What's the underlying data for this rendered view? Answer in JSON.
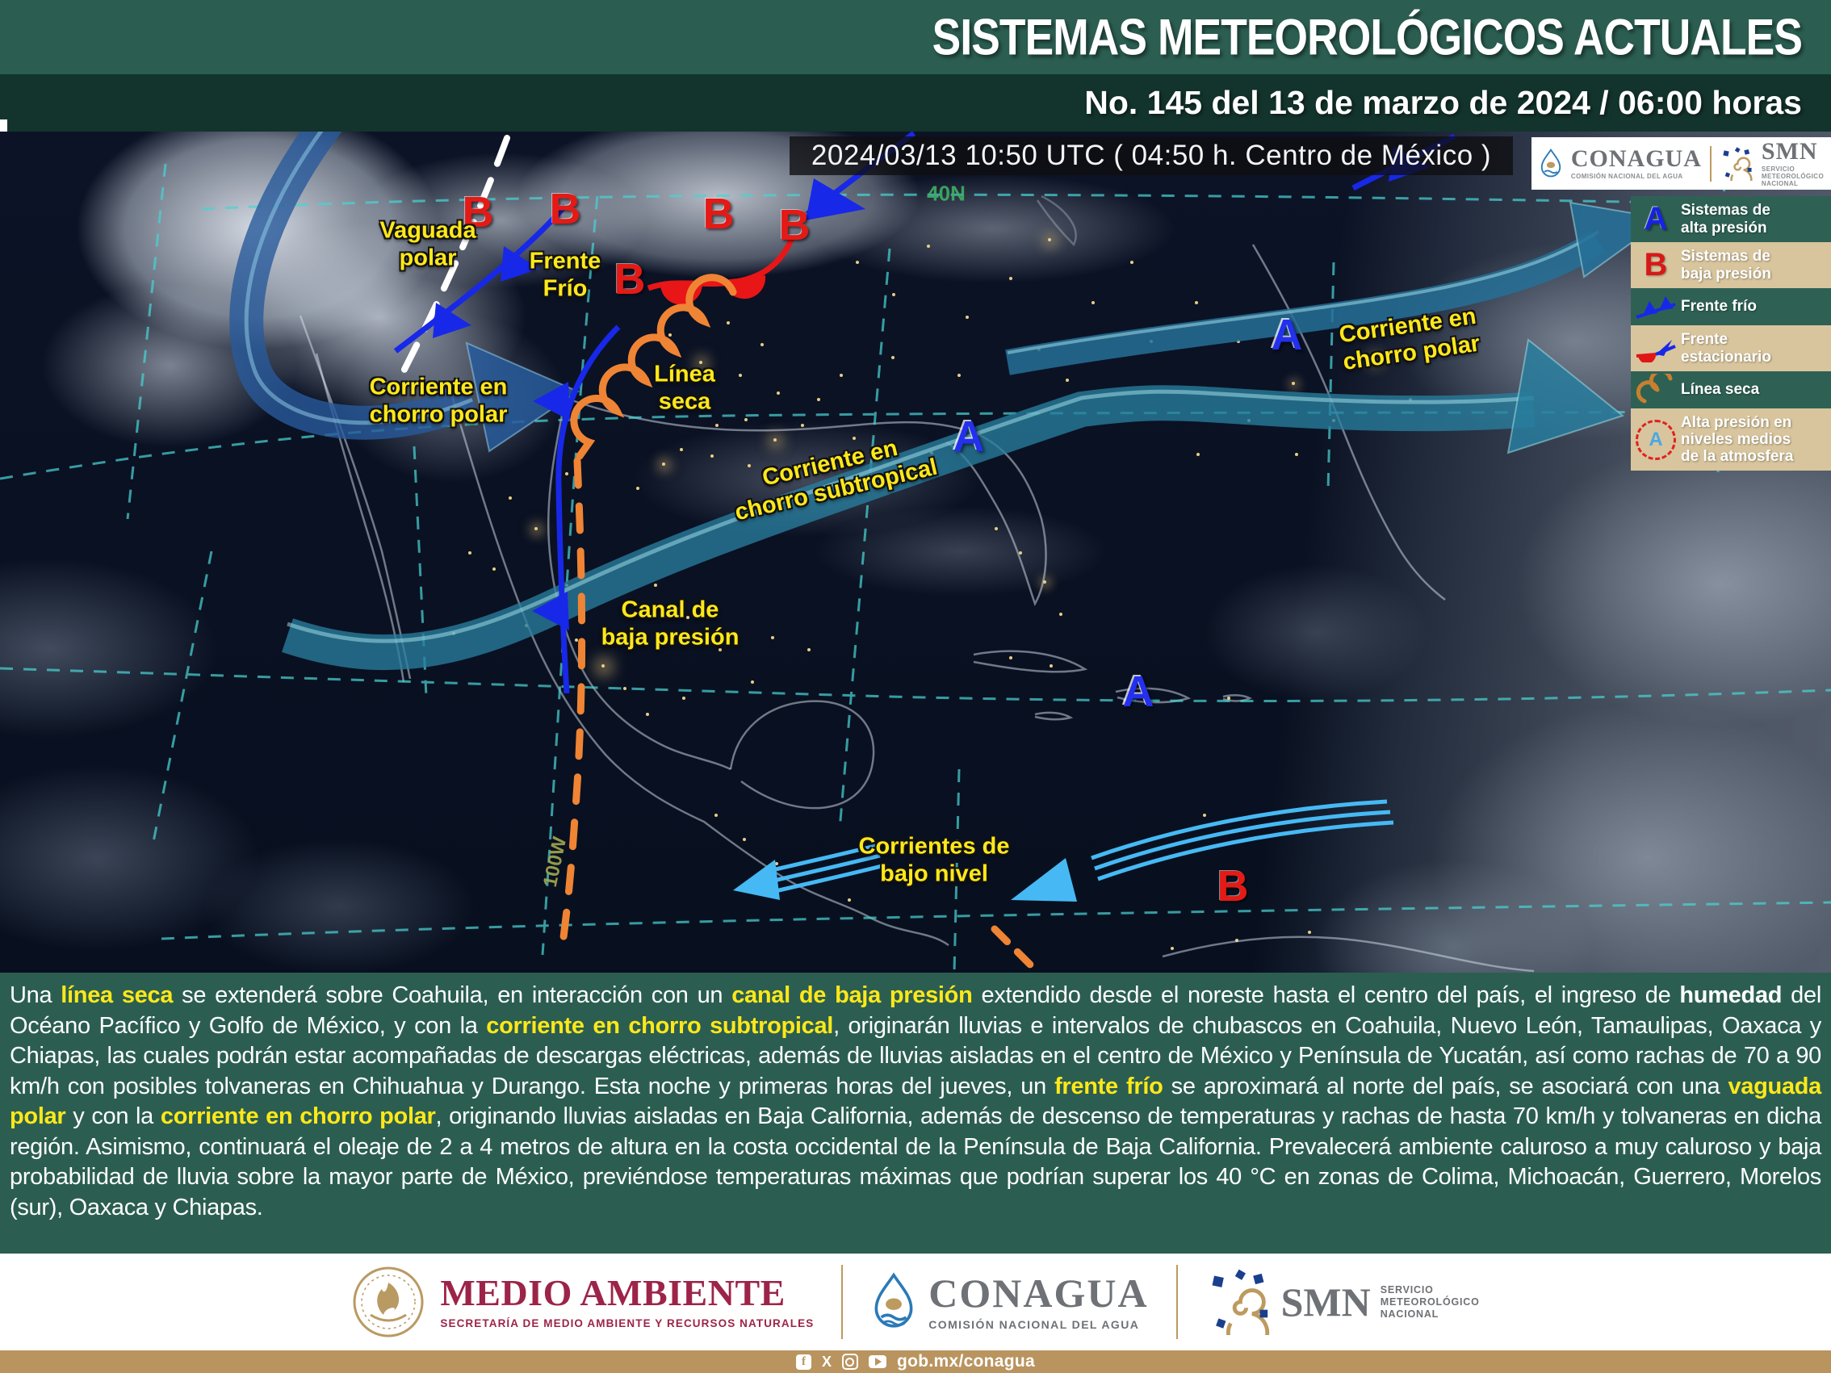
{
  "header": {
    "title": "SISTEMAS METEOROLÓGICOS ACTUALES",
    "subtitle": "No. 145 del 13 de marzo de 2024 / 06:00 horas"
  },
  "map": {
    "timestamp": "2024/03/13 10:50 UTC ( 04:50 h. Centro de México )",
    "logo_box": {
      "conagua": "CONAGUA",
      "conagua_caption": "COMISIÓN NACIONAL DEL AGUA",
      "smn": "SMN",
      "smn_caption": "SERVICIO\nMETEOROLÓGICO\nNACIONAL"
    },
    "legend": {
      "items": [
        {
          "symbol": "high-pressure-letter",
          "label": "Sistemas de\nalta presión"
        },
        {
          "symbol": "low-pressure-letter",
          "label": "Sistemas de\nbaja presión"
        },
        {
          "symbol": "cold-front-icon",
          "label": "Frente frío"
        },
        {
          "symbol": "stationary-front-icon",
          "label": "Frente\nestacionario"
        },
        {
          "symbol": "dry-line-icon",
          "label": "Línea seca"
        },
        {
          "symbol": "mid-level-high-icon",
          "label": "Alta presión en\nniveles medios\nde la atmosfera"
        }
      ]
    },
    "labels": {
      "vaguada": "Vaguada\npolar",
      "frente_frio": "Frente\nFrío",
      "chorro_polar_w": "Corriente en\nchorro polar",
      "linea_seca": "Línea\nseca",
      "chorro_subtropical": "Corriente en\nchorro subtropical",
      "canal_baja": "Canal de\nbaja presión",
      "chorro_polar_e": "Corriente en\nchorro polar",
      "bajo_nivel": "Corrientes de\nbajo nivel"
    },
    "letters": {
      "high": "A",
      "low": "B"
    },
    "graticule": {
      "lat": "40N",
      "lon": "100W"
    }
  },
  "description": {
    "runs": [
      {
        "text": "Una "
      },
      {
        "text": "línea seca",
        "style": "kw"
      },
      {
        "text": " se extenderá sobre Coahuila, en interacción con un "
      },
      {
        "text": "canal de baja presión",
        "style": "kw"
      },
      {
        "text": " extendido desde el noreste hasta el centro del país, el ingreso de "
      },
      {
        "text": "humedad",
        "style": "strong"
      },
      {
        "text": " del Océano Pacífico y Golfo de México, y con la "
      },
      {
        "text": "corriente en chorro subtropical",
        "style": "kw"
      },
      {
        "text": ", originarán lluvias e intervalos de chubascos en Coahuila, Nuevo León, Tamaulipas, Oaxaca y Chiapas, las cuales podrán estar acompañadas de descargas eléctricas, además de lluvias aisladas en el centro de México y Península de Yucatán, así como rachas de 70 a 90 km/h con posibles tolvaneras en Chihuahua y Durango. Esta noche y primeras horas del jueves, un "
      },
      {
        "text": "frente frío",
        "style": "kw"
      },
      {
        "text": " se aproximará al norte del país, se asociará con una "
      },
      {
        "text": "vaguada polar",
        "style": "kw"
      },
      {
        "text": " y con la "
      },
      {
        "text": "corriente en chorro polar",
        "style": "kw"
      },
      {
        "text": ", originando lluvias aisladas en Baja California, además de descenso de temperaturas y rachas de hasta 70 km/h y tolvaneras en dicha región. Asimismo, continuará el oleaje de 2 a 4 metros de altura en la costa occidental de la Península de Baja California. Prevalecerá ambiente caluroso a muy caluroso y baja probabilidad de lluvia sobre la mayor parte de México, previéndose temperaturas máximas que podrían superar los 40 °C en zonas de Colima, Michoacán, Guerrero, Morelos (sur), Oaxaca y Chiapas."
      }
    ]
  },
  "footer": {
    "medio_ambiente": "MEDIO AMBIENTE",
    "medio_ambiente_caption": "SECRETARÍA DE MEDIO AMBIENTE Y RECURSOS NATURALES",
    "conagua": "CONAGUA",
    "conagua_caption": "COMISIÓN NACIONAL DEL AGUA",
    "smn": "SMN",
    "smn_caption": "SERVICIO\nMETEOROLÓGICO\nNACIONAL"
  },
  "bottom_bar": {
    "url": "gob.mx/conagua",
    "icons": [
      "facebook-icon",
      "x-icon",
      "instagram-icon",
      "youtube-icon"
    ]
  },
  "colors": {
    "header_green": "#2b5e51",
    "header_dark": "#13342c",
    "accent_yellow": "#ffe81a",
    "low_red": "#e41a16",
    "high_blue": "#2330ee",
    "jet_teal": "#2e87aa",
    "dry_line_orange": "#ef8434",
    "low_level_blue": "#46b9f4",
    "gold_bar": "#b9945f",
    "legend_tan": "#d8c59d",
    "legend_green": "#2e6154"
  }
}
